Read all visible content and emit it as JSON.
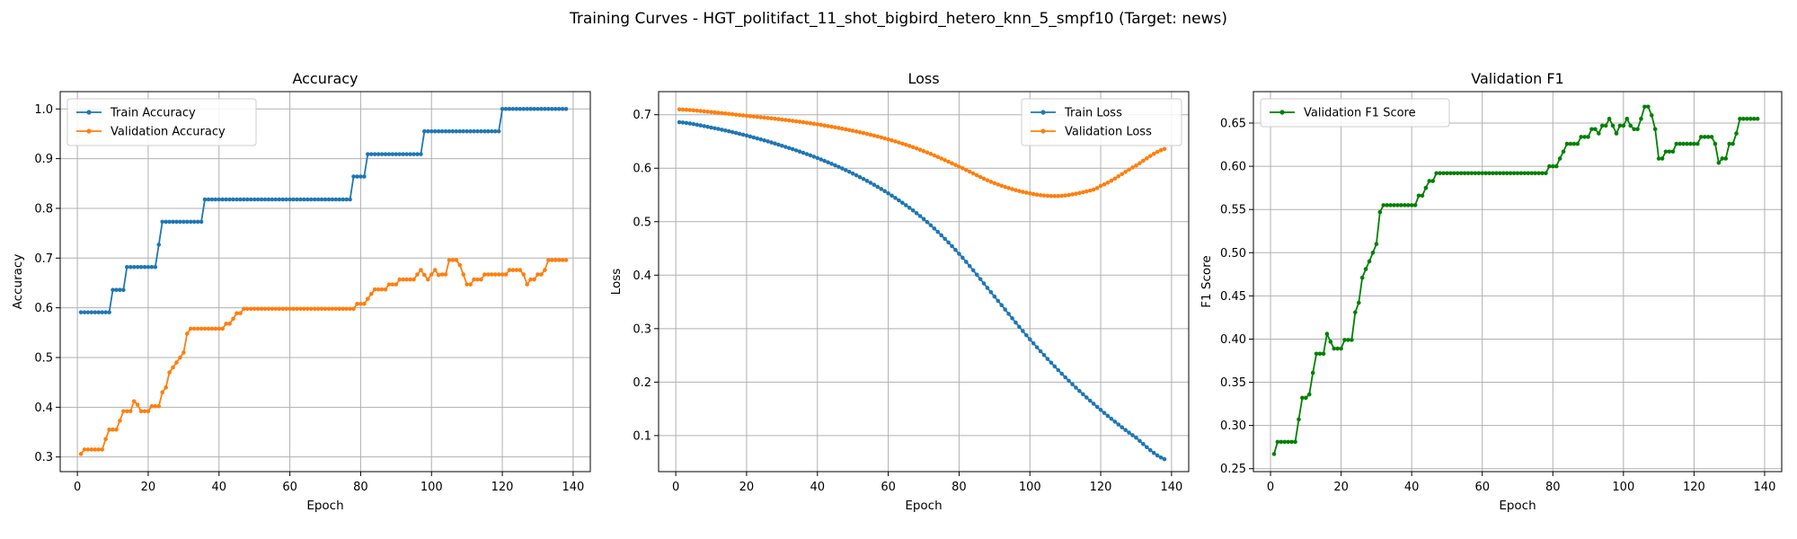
{
  "suptitle": "Training Curves - HGT_politifact_11_shot_bigbird_hetero_knn_5_smpf10 (Target: news)",
  "colors": {
    "train": "#1f77b4",
    "validation": "#ff7f0e",
    "f1": "#008000",
    "grid": "#b0b0b0"
  },
  "chart_data": [
    {
      "type": "line",
      "title": "Accuracy",
      "xlabel": "Epoch",
      "ylabel": "Accuracy",
      "xlim": [
        -4.85,
        144.85
      ],
      "ylim": [
        0.2705,
        1.0348
      ],
      "xticks": [
        0,
        20,
        40,
        60,
        80,
        100,
        120,
        140
      ],
      "yticks": [
        0.3,
        0.4,
        0.5,
        0.6,
        0.7,
        0.8,
        0.9,
        1.0
      ],
      "yticklabels": [
        "0.3",
        "0.4",
        "0.5",
        "0.6",
        "0.7",
        "0.8",
        "0.9",
        "1.0"
      ],
      "grid": true,
      "legend": "upper-left",
      "series": [
        {
          "name": "Train Accuracy",
          "color": "#1f77b4",
          "segments": [
            {
              "from": 1,
              "to": 9,
              "value": 0.591
            },
            {
              "from": 10,
              "to": 13,
              "value": 0.636
            },
            {
              "from": 14,
              "to": 22,
              "value": 0.682
            },
            {
              "from": 23,
              "to": 23,
              "value": 0.727
            },
            {
              "from": 24,
              "to": 35,
              "value": 0.773
            },
            {
              "from": 36,
              "to": 77,
              "value": 0.818
            },
            {
              "from": 78,
              "to": 81,
              "value": 0.864
            },
            {
              "from": 82,
              "to": 97,
              "value": 0.909
            },
            {
              "from": 98,
              "to": 119,
              "value": 0.955
            },
            {
              "from": 120,
              "to": 138,
              "value": 1.0
            }
          ]
        },
        {
          "name": "Validation Accuracy",
          "color": "#ff7f0e",
          "segments": [
            {
              "from": 1,
              "to": 1,
              "value": 0.306
            },
            {
              "from": 2,
              "to": 7,
              "value": 0.315
            },
            {
              "from": 8,
              "to": 8,
              "value": 0.336
            },
            {
              "from": 9,
              "to": 11,
              "value": 0.355
            },
            {
              "from": 12,
              "to": 12,
              "value": 0.373
            },
            {
              "from": 13,
              "to": 15,
              "value": 0.392
            },
            {
              "from": 16,
              "to": 16,
              "value": 0.412
            },
            {
              "from": 17,
              "to": 17,
              "value": 0.405
            },
            {
              "from": 18,
              "to": 20,
              "value": 0.392
            },
            {
              "from": 21,
              "to": 23,
              "value": 0.402
            },
            {
              "from": 24,
              "to": 24,
              "value": 0.43
            },
            {
              "from": 25,
              "to": 25,
              "value": 0.44
            },
            {
              "from": 26,
              "to": 26,
              "value": 0.47
            },
            {
              "from": 27,
              "to": 27,
              "value": 0.48
            },
            {
              "from": 28,
              "to": 28,
              "value": 0.49
            },
            {
              "from": 29,
              "to": 29,
              "value": 0.5
            },
            {
              "from": 30,
              "to": 30,
              "value": 0.51
            },
            {
              "from": 31,
              "to": 31,
              "value": 0.548
            },
            {
              "from": 32,
              "to": 41,
              "value": 0.558
            },
            {
              "from": 42,
              "to": 43,
              "value": 0.568
            },
            {
              "from": 44,
              "to": 44,
              "value": 0.578
            },
            {
              "from": 45,
              "to": 46,
              "value": 0.589
            },
            {
              "from": 47,
              "to": 78,
              "value": 0.598
            },
            {
              "from": 79,
              "to": 81,
              "value": 0.608
            },
            {
              "from": 82,
              "to": 82,
              "value": 0.618
            },
            {
              "from": 83,
              "to": 83,
              "value": 0.628
            },
            {
              "from": 84,
              "to": 87,
              "value": 0.637
            },
            {
              "from": 88,
              "to": 90,
              "value": 0.647
            },
            {
              "from": 91,
              "to": 95,
              "value": 0.657
            },
            {
              "from": 96,
              "to": 96,
              "value": 0.667
            },
            {
              "from": 97,
              "to": 97,
              "value": 0.676
            },
            {
              "from": 98,
              "to": 98,
              "value": 0.666
            },
            {
              "from": 99,
              "to": 99,
              "value": 0.657
            },
            {
              "from": 100,
              "to": 100,
              "value": 0.667
            },
            {
              "from": 101,
              "to": 101,
              "value": 0.676
            },
            {
              "from": 102,
              "to": 102,
              "value": 0.666
            },
            {
              "from": 103,
              "to": 104,
              "value": 0.667
            },
            {
              "from": 105,
              "to": 107,
              "value": 0.696
            },
            {
              "from": 108,
              "to": 108,
              "value": 0.686
            },
            {
              "from": 109,
              "to": 109,
              "value": 0.667
            },
            {
              "from": 110,
              "to": 111,
              "value": 0.647
            },
            {
              "from": 112,
              "to": 114,
              "value": 0.657
            },
            {
              "from": 115,
              "to": 121,
              "value": 0.667
            },
            {
              "from": 122,
              "to": 125,
              "value": 0.676
            },
            {
              "from": 126,
              "to": 126,
              "value": 0.667
            },
            {
              "from": 127,
              "to": 127,
              "value": 0.647
            },
            {
              "from": 128,
              "to": 129,
              "value": 0.657
            },
            {
              "from": 130,
              "to": 131,
              "value": 0.667
            },
            {
              "from": 132,
              "to": 132,
              "value": 0.676
            },
            {
              "from": 133,
              "to": 138,
              "value": 0.696
            }
          ]
        }
      ]
    },
    {
      "type": "line",
      "title": "Loss",
      "xlabel": "Epoch",
      "ylabel": "Loss",
      "xlim": [
        -4.85,
        144.85
      ],
      "ylim": [
        0.0326,
        0.7432
      ],
      "xticks": [
        0,
        20,
        40,
        60,
        80,
        100,
        120,
        140
      ],
      "yticks": [
        0.1,
        0.2,
        0.3,
        0.4,
        0.5,
        0.6,
        0.7
      ],
      "yticklabels": [
        "0.1",
        "0.2",
        "0.3",
        "0.4",
        "0.5",
        "0.6",
        "0.7"
      ],
      "grid": true,
      "legend": "upper-right",
      "series": [
        {
          "name": "Train Loss",
          "color": "#1f77b4",
          "knots": [
            [
              1,
              0.686
            ],
            [
              10,
              0.676
            ],
            [
              20,
              0.661
            ],
            [
              30,
              0.642
            ],
            [
              40,
              0.619
            ],
            [
              50,
              0.59
            ],
            [
              60,
              0.553
            ],
            [
              70,
              0.505
            ],
            [
              80,
              0.44
            ],
            [
              90,
              0.36
            ],
            [
              100,
              0.28
            ],
            [
              110,
              0.209
            ],
            [
              120,
              0.148
            ],
            [
              130,
              0.096
            ],
            [
              138,
              0.056
            ]
          ]
        },
        {
          "name": "Validation Loss",
          "color": "#ff7f0e",
          "knots": [
            [
              1,
              0.71
            ],
            [
              10,
              0.705
            ],
            [
              20,
              0.698
            ],
            [
              30,
              0.691
            ],
            [
              40,
              0.682
            ],
            [
              50,
              0.67
            ],
            [
              60,
              0.654
            ],
            [
              70,
              0.632
            ],
            [
              80,
              0.603
            ],
            [
              90,
              0.572
            ],
            [
              100,
              0.553
            ],
            [
              108,
              0.548
            ],
            [
              115,
              0.555
            ],
            [
              120,
              0.567
            ],
            [
              130,
              0.605
            ],
            [
              138,
              0.636
            ]
          ]
        }
      ]
    },
    {
      "type": "line",
      "title": "Validation F1",
      "xlabel": "Epoch",
      "ylabel": "F1 Score",
      "xlim": [
        -4.85,
        144.85
      ],
      "ylim": [
        0.2466,
        0.6864
      ],
      "xticks": [
        0,
        20,
        40,
        60,
        80,
        100,
        120,
        140
      ],
      "yticks": [
        0.25,
        0.3,
        0.35,
        0.4,
        0.45,
        0.5,
        0.55,
        0.6,
        0.65
      ],
      "yticklabels": [
        "0.25",
        "0.30",
        "0.35",
        "0.40",
        "0.45",
        "0.50",
        "0.55",
        "0.60",
        "0.65"
      ],
      "grid": true,
      "legend": "upper-left",
      "series": [
        {
          "name": "Validation F1 Score",
          "color": "#008000",
          "segments": [
            {
              "from": 1,
              "to": 1,
              "value": 0.267
            },
            {
              "from": 2,
              "to": 7,
              "value": 0.281
            },
            {
              "from": 8,
              "to": 8,
              "value": 0.307
            },
            {
              "from": 9,
              "to": 10,
              "value": 0.332
            },
            {
              "from": 11,
              "to": 11,
              "value": 0.336
            },
            {
              "from": 12,
              "to": 12,
              "value": 0.361
            },
            {
              "from": 13,
              "to": 15,
              "value": 0.383
            },
            {
              "from": 16,
              "to": 16,
              "value": 0.406
            },
            {
              "from": 17,
              "to": 17,
              "value": 0.397
            },
            {
              "from": 18,
              "to": 20,
              "value": 0.389
            },
            {
              "from": 21,
              "to": 23,
              "value": 0.399
            },
            {
              "from": 24,
              "to": 24,
              "value": 0.431
            },
            {
              "from": 25,
              "to": 25,
              "value": 0.442
            },
            {
              "from": 26,
              "to": 26,
              "value": 0.471
            },
            {
              "from": 27,
              "to": 27,
              "value": 0.481
            },
            {
              "from": 28,
              "to": 28,
              "value": 0.49
            },
            {
              "from": 29,
              "to": 29,
              "value": 0.5
            },
            {
              "from": 30,
              "to": 30,
              "value": 0.51
            },
            {
              "from": 31,
              "to": 31,
              "value": 0.547
            },
            {
              "from": 32,
              "to": 41,
              "value": 0.555
            },
            {
              "from": 42,
              "to": 43,
              "value": 0.566
            },
            {
              "from": 44,
              "to": 44,
              "value": 0.575
            },
            {
              "from": 45,
              "to": 46,
              "value": 0.583
            },
            {
              "from": 47,
              "to": 78,
              "value": 0.592
            },
            {
              "from": 79,
              "to": 81,
              "value": 0.6
            },
            {
              "from": 82,
              "to": 82,
              "value": 0.609
            },
            {
              "from": 83,
              "to": 83,
              "value": 0.617
            },
            {
              "from": 84,
              "to": 87,
              "value": 0.626
            },
            {
              "from": 88,
              "to": 90,
              "value": 0.634
            },
            {
              "from": 91,
              "to": 92,
              "value": 0.643
            },
            {
              "from": 93,
              "to": 93,
              "value": 0.638
            },
            {
              "from": 94,
              "to": 95,
              "value": 0.647
            },
            {
              "from": 96,
              "to": 96,
              "value": 0.655
            },
            {
              "from": 97,
              "to": 97,
              "value": 0.647
            },
            {
              "from": 98,
              "to": 98,
              "value": 0.638
            },
            {
              "from": 99,
              "to": 99,
              "value": 0.647
            },
            {
              "from": 100,
              "to": 100,
              "value": 0.647
            },
            {
              "from": 101,
              "to": 101,
              "value": 0.655
            },
            {
              "from": 102,
              "to": 102,
              "value": 0.647
            },
            {
              "from": 103,
              "to": 104,
              "value": 0.643
            },
            {
              "from": 105,
              "to": 105,
              "value": 0.655
            },
            {
              "from": 106,
              "to": 107,
              "value": 0.669
            },
            {
              "from": 108,
              "to": 108,
              "value": 0.659
            },
            {
              "from": 109,
              "to": 109,
              "value": 0.643
            },
            {
              "from": 110,
              "to": 111,
              "value": 0.609
            },
            {
              "from": 112,
              "to": 114,
              "value": 0.617
            },
            {
              "from": 115,
              "to": 121,
              "value": 0.626
            },
            {
              "from": 122,
              "to": 125,
              "value": 0.634
            },
            {
              "from": 126,
              "to": 126,
              "value": 0.626
            },
            {
              "from": 127,
              "to": 127,
              "value": 0.604
            },
            {
              "from": 128,
              "to": 129,
              "value": 0.609
            },
            {
              "from": 130,
              "to": 131,
              "value": 0.626
            },
            {
              "from": 132,
              "to": 132,
              "value": 0.638
            },
            {
              "from": 133,
              "to": 138,
              "value": 0.655
            }
          ]
        }
      ]
    }
  ]
}
